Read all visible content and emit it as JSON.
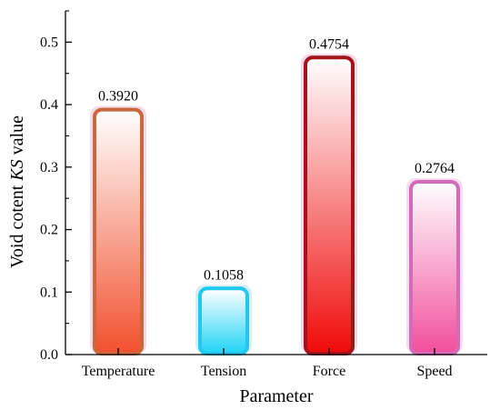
{
  "chart_data": {
    "type": "bar",
    "categories": [
      "Temperature",
      "Tension",
      "Force",
      "Speed"
    ],
    "values": [
      0.392,
      0.1058,
      0.4754,
      0.2764
    ],
    "data_labels": [
      "0.3920",
      "0.1058",
      "0.4754",
      "0.2764"
    ],
    "title": "",
    "xlabel": "Parameter",
    "ylabel_prefix": "Void cotent ",
    "ylabel_italic": "KS",
    "ylabel_suffix": " value",
    "ylim": [
      0,
      0.55
    ],
    "yticks": [
      0.0,
      0.1,
      0.2,
      0.3,
      0.4,
      0.5
    ],
    "ytick_labels": [
      "0.0",
      "0.1",
      "0.2",
      "0.3",
      "0.4",
      "0.5"
    ],
    "grid": false,
    "legend": "none",
    "bar_styles": [
      {
        "stroke": "#c8683c",
        "fill_top": "#ffffff",
        "fill_bottom": "#f2502e",
        "glow": "#f6d2e6"
      },
      {
        "stroke": "#1ec8ee",
        "fill_top": "#ffffff",
        "fill_bottom": "#1ed4f6",
        "glow": "#cfe9f8"
      },
      {
        "stroke": "#a0141a",
        "fill_top": "#ffffff",
        "fill_bottom": "#f00a0a",
        "glow": "#f6cfe4"
      },
      {
        "stroke": "#d26cb8",
        "fill_top": "#ffffff",
        "fill_bottom": "#f24e9c",
        "glow": "#f6d6ee"
      }
    ]
  }
}
